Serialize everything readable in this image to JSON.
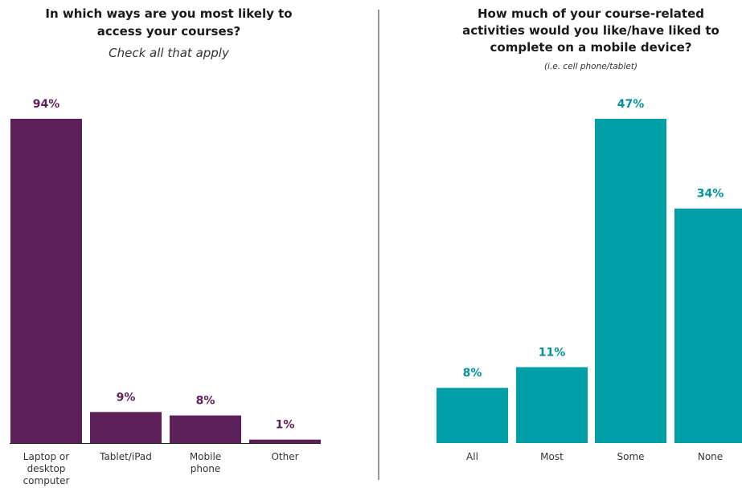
{
  "chart_data": [
    {
      "type": "bar",
      "title": "In which ways are you most likely to access your courses?",
      "title_lines": [
        "In which ways are you most likely to",
        "access your courses?"
      ],
      "subtitle": "Check all that apply",
      "categories": [
        "Laptop or desktop computer",
        "Tablet/iPad",
        "Mobile phone",
        "Other"
      ],
      "category_lines": [
        [
          "Laptop or",
          "desktop",
          "computer"
        ],
        [
          "Tablet/iPad"
        ],
        [
          "Mobile",
          "phone"
        ],
        [
          "Other"
        ]
      ],
      "values": [
        94,
        9,
        8,
        1
      ],
      "value_labels": [
        "94%",
        "9%",
        "8%",
        "1%"
      ],
      "ylim": [
        0,
        94
      ],
      "grid": false,
      "color": "#5c1f5a",
      "label_color": "#5c1f5a"
    },
    {
      "type": "bar",
      "title": "How much of your course-related activities would you like/have liked to complete on a mobile device?",
      "title_lines": [
        "How much of your course-related",
        "activities would you like/have liked to",
        "complete on a mobile device?"
      ],
      "subtitle": "(i.e. cell phone/tablet)",
      "categories": [
        "All",
        "Most",
        "Some",
        "None"
      ],
      "category_lines": [
        [
          "All"
        ],
        [
          "Most"
        ],
        [
          "Some"
        ],
        [
          "None"
        ]
      ],
      "values": [
        8,
        11,
        47,
        34
      ],
      "value_labels": [
        "8%",
        "11%",
        "47%",
        "34%"
      ],
      "ylim": [
        0,
        47
      ],
      "grid": false,
      "color": "#009ea7",
      "label_color": "#00929b"
    }
  ]
}
